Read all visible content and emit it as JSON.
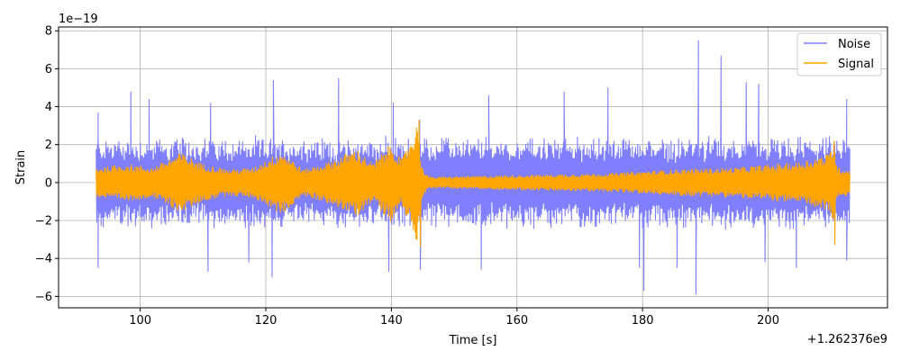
{
  "chart_data": {
    "type": "line",
    "title": "",
    "xlabel": "Time [s]",
    "ylabel": "Strain",
    "x_offset_label": "+1.262376e9",
    "y_scale_label": "1e−19",
    "xlim": [
      87,
      219
    ],
    "ylim": [
      -6.6,
      8.2
    ],
    "x_ticks": [
      100,
      120,
      140,
      160,
      180,
      200
    ],
    "y_ticks": [
      -6,
      -4,
      -2,
      0,
      2,
      4,
      6,
      8
    ],
    "x_tick_labels": [
      "100",
      "120",
      "140",
      "160",
      "180",
      "200"
    ],
    "y_tick_labels": [
      "−6",
      "−4",
      "−2",
      "0",
      "2",
      "4",
      "6",
      "8"
    ],
    "grid": true,
    "legend_position": "top-right",
    "series": [
      {
        "name": "Noise",
        "color": "#7f7fff",
        "x_range": [
          93,
          213
        ],
        "typical_amplitude": 2.2,
        "peak_highs": [
          [
            93.3,
            3.7
          ],
          [
            98.5,
            4.8
          ],
          [
            101.4,
            4.4
          ],
          [
            111.2,
            4.2
          ],
          [
            121.2,
            5.4
          ],
          [
            131.6,
            5.5
          ],
          [
            140.3,
            4.2
          ],
          [
            144.5,
            3.3
          ],
          [
            155.5,
            4.6
          ],
          [
            167.5,
            4.8
          ],
          [
            174.5,
            5.0
          ],
          [
            188.9,
            7.5
          ],
          [
            192.5,
            6.7
          ],
          [
            196.5,
            5.3
          ],
          [
            198.5,
            5.2
          ],
          [
            212.5,
            4.4
          ]
        ],
        "peak_lows": [
          [
            93.3,
            -4.5
          ],
          [
            110.8,
            -4.7
          ],
          [
            117.3,
            -4.2
          ],
          [
            121.0,
            -5.0
          ],
          [
            139.6,
            -4.7
          ],
          [
            144.6,
            -4.6
          ],
          [
            154.3,
            -4.6
          ],
          [
            179.5,
            -4.5
          ],
          [
            180.2,
            -5.7
          ],
          [
            185.5,
            -4.5
          ],
          [
            188.5,
            -5.9
          ],
          [
            199.5,
            -4.2
          ],
          [
            204.5,
            -4.5
          ],
          [
            212.5,
            -4.1
          ]
        ]
      },
      {
        "name": "Signal",
        "color": "#ffa500",
        "x_range": [
          93,
          213
        ],
        "envelope": [
          [
            93,
            0.8
          ],
          [
            98,
            1.0
          ],
          [
            102,
            0.8
          ],
          [
            106.5,
            1.6
          ],
          [
            110,
            1.0
          ],
          [
            114,
            0.7
          ],
          [
            118,
            0.8
          ],
          [
            122.5,
            1.7
          ],
          [
            126,
            0.7
          ],
          [
            130,
            1.1
          ],
          [
            134.5,
            1.8
          ],
          [
            137,
            1.0
          ],
          [
            140,
            2.1
          ],
          [
            141.6,
            1.2
          ],
          [
            143.0,
            2.3
          ],
          [
            144.2,
            3.2
          ],
          [
            144.8,
            0.9
          ],
          [
            146,
            0.3
          ],
          [
            160,
            0.4
          ],
          [
            175,
            0.5
          ],
          [
            185,
            0.7
          ],
          [
            195,
            0.8
          ],
          [
            205,
            1.1
          ],
          [
            209.5,
            1.5
          ],
          [
            210.5,
            2.1
          ],
          [
            211,
            0.8
          ],
          [
            213,
            0.7
          ]
        ],
        "spikes": [
          [
            144.4,
            3.3
          ],
          [
            144.6,
            -3.4
          ],
          [
            210.5,
            2.2
          ],
          [
            210.6,
            -3.3
          ]
        ]
      }
    ]
  }
}
